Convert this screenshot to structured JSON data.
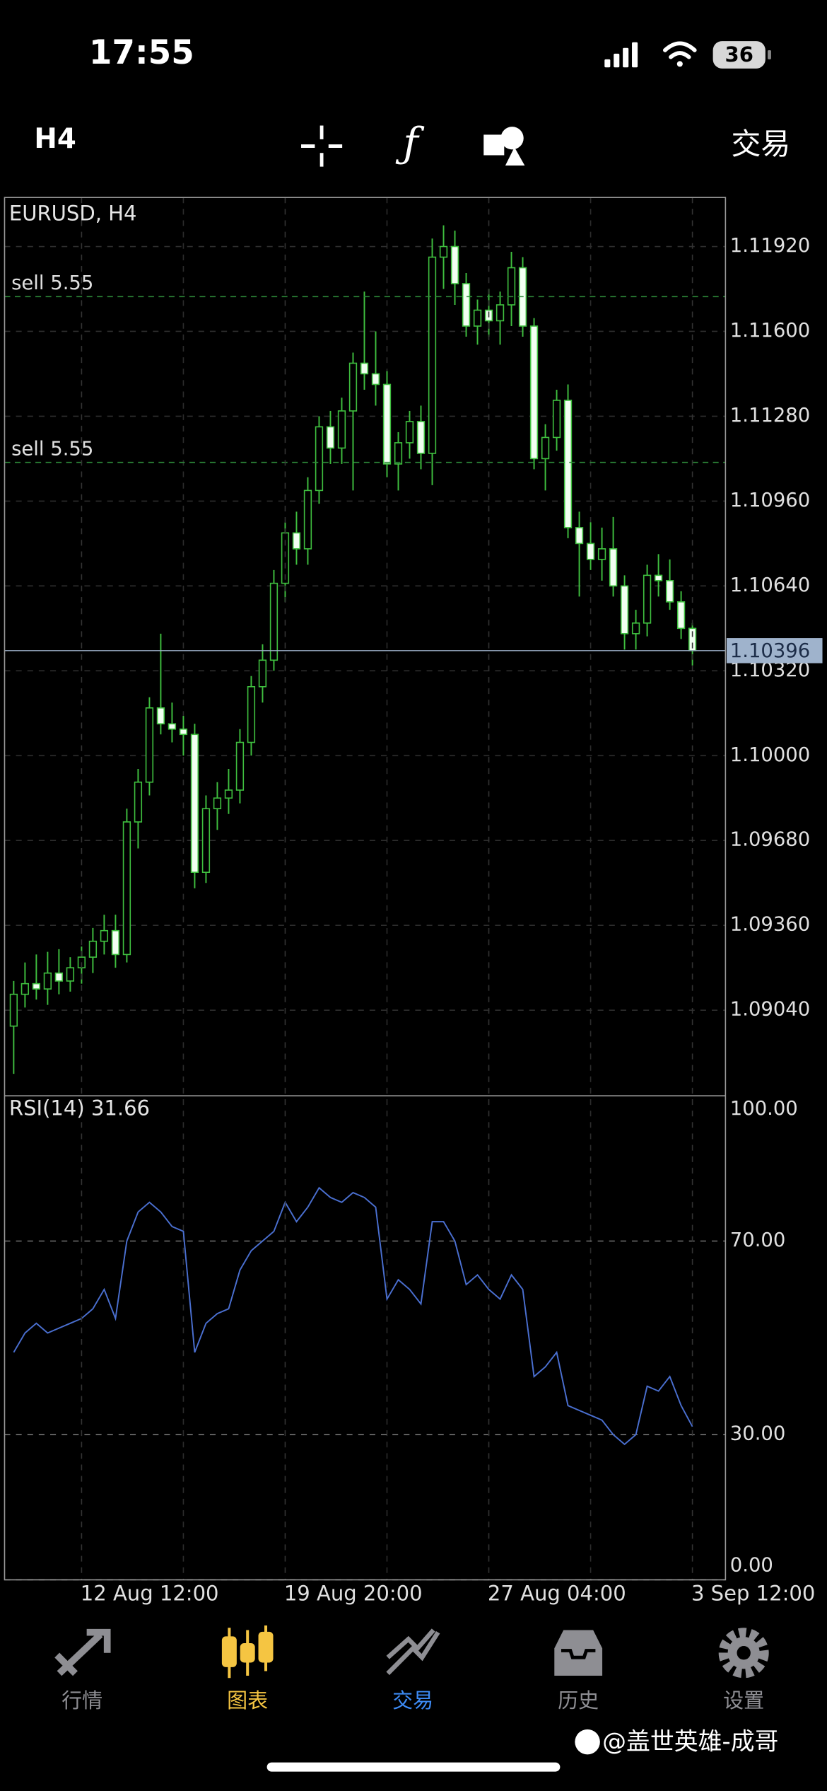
{
  "status_bar": {
    "time": "17:55",
    "battery": "36"
  },
  "toolbar": {
    "timeframe": "H4",
    "trade": "交易"
  },
  "chart_data": [
    {
      "type": "candlestick",
      "title": "EURUSD, H4",
      "open": [
        1.0898,
        1.091,
        1.0914,
        1.0912,
        1.0918,
        1.0915,
        1.092,
        1.0924,
        1.093,
        1.0934,
        1.0925,
        1.0975,
        1.099,
        1.1018,
        1.1012,
        1.101,
        1.1008,
        1.0956,
        1.098,
        1.0984,
        1.0987,
        1.1005,
        1.1026,
        1.1036,
        1.1065,
        1.1084,
        1.1078,
        1.11,
        1.1124,
        1.1116,
        1.113,
        1.1148,
        1.1144,
        1.114,
        1.111,
        1.1118,
        1.1126,
        1.1114,
        1.1188,
        1.1192,
        1.1178,
        1.1162,
        1.1168,
        1.1164,
        1.117,
        1.1184,
        1.1162,
        1.1112,
        1.112,
        1.1134,
        1.1086,
        1.108,
        1.1074,
        1.1078,
        1.1064,
        1.1046,
        1.105,
        1.1068,
        1.1066,
        1.1058,
        1.1048
      ],
      "high": [
        1.0915,
        1.0922,
        1.0925,
        1.0926,
        1.0927,
        1.0924,
        1.0928,
        1.0935,
        1.094,
        1.094,
        1.098,
        1.0995,
        1.1022,
        1.1046,
        1.102,
        1.1015,
        1.1012,
        1.0985,
        1.099,
        1.0995,
        1.101,
        1.103,
        1.1042,
        1.107,
        1.1088,
        1.1092,
        1.1105,
        1.1128,
        1.113,
        1.1135,
        1.1152,
        1.1175,
        1.116,
        1.1145,
        1.1122,
        1.113,
        1.1132,
        1.1195,
        1.12,
        1.1198,
        1.1182,
        1.1172,
        1.1176,
        1.1175,
        1.119,
        1.1188,
        1.1165,
        1.1125,
        1.1138,
        1.114,
        1.1092,
        1.1088,
        1.1086,
        1.109,
        1.1068,
        1.1055,
        1.1072,
        1.1076,
        1.1074,
        1.1062,
        1.105
      ],
      "low": [
        1.088,
        1.0905,
        1.0908,
        1.0906,
        1.091,
        1.0911,
        1.0914,
        1.0918,
        1.0925,
        1.092,
        1.0922,
        1.0965,
        1.0985,
        1.1008,
        1.1005,
        1.1,
        1.095,
        1.0952,
        1.0972,
        1.0978,
        1.0982,
        1.1,
        1.102,
        1.1032,
        1.1058,
        1.1072,
        1.1072,
        1.1095,
        1.111,
        1.111,
        1.11,
        1.1138,
        1.1132,
        1.1105,
        1.11,
        1.1112,
        1.1108,
        1.1102,
        1.1176,
        1.117,
        1.1158,
        1.1155,
        1.1158,
        1.1155,
        1.1162,
        1.1158,
        1.1108,
        1.11,
        1.1115,
        1.1082,
        1.106,
        1.107,
        1.1066,
        1.106,
        1.104,
        1.104,
        1.1045,
        1.106,
        1.1055,
        1.1044,
        1.1034
      ],
      "close": [
        1.091,
        1.0914,
        1.0912,
        1.0918,
        1.0915,
        1.092,
        1.0924,
        1.093,
        1.0934,
        1.0925,
        1.0975,
        1.099,
        1.1018,
        1.1012,
        1.101,
        1.1008,
        1.0956,
        1.098,
        1.0984,
        1.0987,
        1.1005,
        1.1026,
        1.1036,
        1.1065,
        1.1084,
        1.1078,
        1.11,
        1.1124,
        1.1116,
        1.113,
        1.1148,
        1.1144,
        1.114,
        1.111,
        1.1118,
        1.1126,
        1.1114,
        1.1188,
        1.1192,
        1.1178,
        1.1162,
        1.1168,
        1.1164,
        1.117,
        1.1184,
        1.1162,
        1.1112,
        1.112,
        1.1134,
        1.1086,
        1.108,
        1.1074,
        1.1078,
        1.1064,
        1.1046,
        1.105,
        1.1068,
        1.1066,
        1.1058,
        1.1048,
        1.10396
      ],
      "ylim": [
        1.08717,
        1.12105
      ],
      "yticks": [
        {
          "value": 1.0904,
          "label": "1.09040"
        },
        {
          "value": 1.0936,
          "label": "1.09360"
        },
        {
          "value": 1.0968,
          "label": "1.09680"
        },
        {
          "value": 1.1,
          "label": "1.10000"
        },
        {
          "value": 1.1032,
          "label": "1.10320"
        },
        {
          "value": 1.1064,
          "label": "1.10640"
        },
        {
          "value": 1.1096,
          "label": "1.10960"
        },
        {
          "value": 1.1128,
          "label": "1.11280"
        },
        {
          "value": 1.116,
          "label": "1.11600"
        },
        {
          "value": 1.1192,
          "label": "1.11920"
        }
      ],
      "grid": true,
      "up_color": "#000000",
      "down_color": "#f2fff2",
      "wick_color": "#3fbf3f",
      "levels": [
        {
          "value": 1.11731,
          "label": "sell 5.55"
        },
        {
          "value": 1.11106,
          "label": "sell 5.55"
        }
      ],
      "level_color": "#2e8b3a",
      "price_line": {
        "value": 1.10396,
        "color": "#9fb3cc"
      }
    },
    {
      "type": "line",
      "title": "RSI(14) 31.66",
      "categories": [
        null,
        null,
        null,
        null,
        null,
        null,
        "12 Aug 12:00",
        null,
        null,
        null,
        null,
        null,
        null,
        null,
        null,
        null,
        null,
        null,
        null,
        null,
        null,
        null,
        null,
        null,
        "19 Aug 20:00",
        null,
        null,
        null,
        null,
        null,
        null,
        null,
        null,
        null,
        null,
        null,
        null,
        null,
        null,
        null,
        null,
        null,
        "27 Aug 04:00",
        null,
        null,
        null,
        null,
        null,
        null,
        null,
        null,
        null,
        null,
        null,
        null,
        null,
        null,
        null,
        null,
        null,
        "3 Sep 12:00"
      ],
      "series": [
        {
          "color": "#4a6fd0",
          "values": [
            47,
            51,
            53,
            51,
            52,
            53,
            54,
            56,
            60,
            54,
            70,
            76,
            78,
            76,
            73,
            72,
            47,
            53,
            55,
            56,
            64,
            68,
            70,
            72,
            78,
            74,
            77,
            81,
            79,
            78,
            80,
            79,
            77,
            58,
            62,
            60,
            57,
            74,
            74,
            70,
            61,
            63,
            60,
            58,
            63,
            60,
            42,
            44,
            47,
            36,
            35,
            34,
            33,
            30,
            28,
            30,
            40,
            39,
            42,
            36,
            31.66
          ]
        }
      ],
      "ylim": [
        0,
        100
      ],
      "yticks": [
        {
          "value": 0,
          "label": "0.00"
        },
        {
          "value": 30,
          "label": "30.00"
        },
        {
          "value": 70,
          "label": "70.00"
        },
        {
          "value": 100,
          "label": "100.00"
        }
      ],
      "grid": true
    }
  ],
  "tab_bar": {
    "tabs": [
      "行情",
      "图表",
      "交易",
      "历史",
      "设置"
    ]
  },
  "watermark": "@盖世英雄-成哥"
}
